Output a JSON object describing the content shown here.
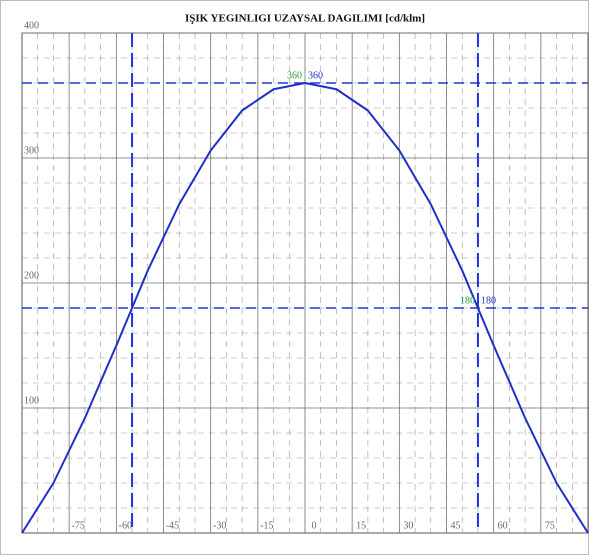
{
  "chart_data": {
    "type": "line",
    "title": "IŞIK YEGINLIGI UZAYSAL DAGILIMI [cd/klm]",
    "x": [
      -90,
      -80,
      -70,
      -60,
      -55,
      -50,
      -40,
      -30,
      -20,
      -10,
      0,
      10,
      20,
      30,
      40,
      50,
      55,
      60,
      70,
      80,
      90
    ],
    "series": [
      {
        "color": "#1f2fc8",
        "values": [
          0,
          40,
          92,
          150,
          180,
          210,
          263,
          306,
          338,
          355,
          360,
          355,
          338,
          306,
          263,
          210,
          180,
          150,
          92,
          40,
          0
        ]
      }
    ],
    "xlim": [
      -90,
      90
    ],
    "ylim": [
      0,
      400
    ],
    "xticks": [
      -75,
      -60,
      -45,
      -30,
      -15,
      0,
      15,
      30,
      45,
      60,
      75
    ],
    "yticks": [
      100,
      200,
      300,
      400
    ],
    "grid": true,
    "minor_grid": {
      "x": 5,
      "y": 20
    },
    "reference_lines": {
      "color": "#2233dd",
      "y": [
        360,
        180
      ],
      "x": [
        -55,
        55
      ]
    },
    "annotations": [
      {
        "label": "360",
        "value": 360,
        "x": 0,
        "color": "#2a9a3a",
        "side": "left"
      },
      {
        "label": "360",
        "value": 360,
        "x": 0,
        "color": "#1f2fc8",
        "side": "right"
      },
      {
        "label": "180",
        "value": 180,
        "x": 55,
        "color": "#2a9a3a",
        "side": "left"
      },
      {
        "label": "180",
        "value": 180,
        "x": 55,
        "color": "#1f2fc8",
        "side": "right"
      }
    ]
  }
}
